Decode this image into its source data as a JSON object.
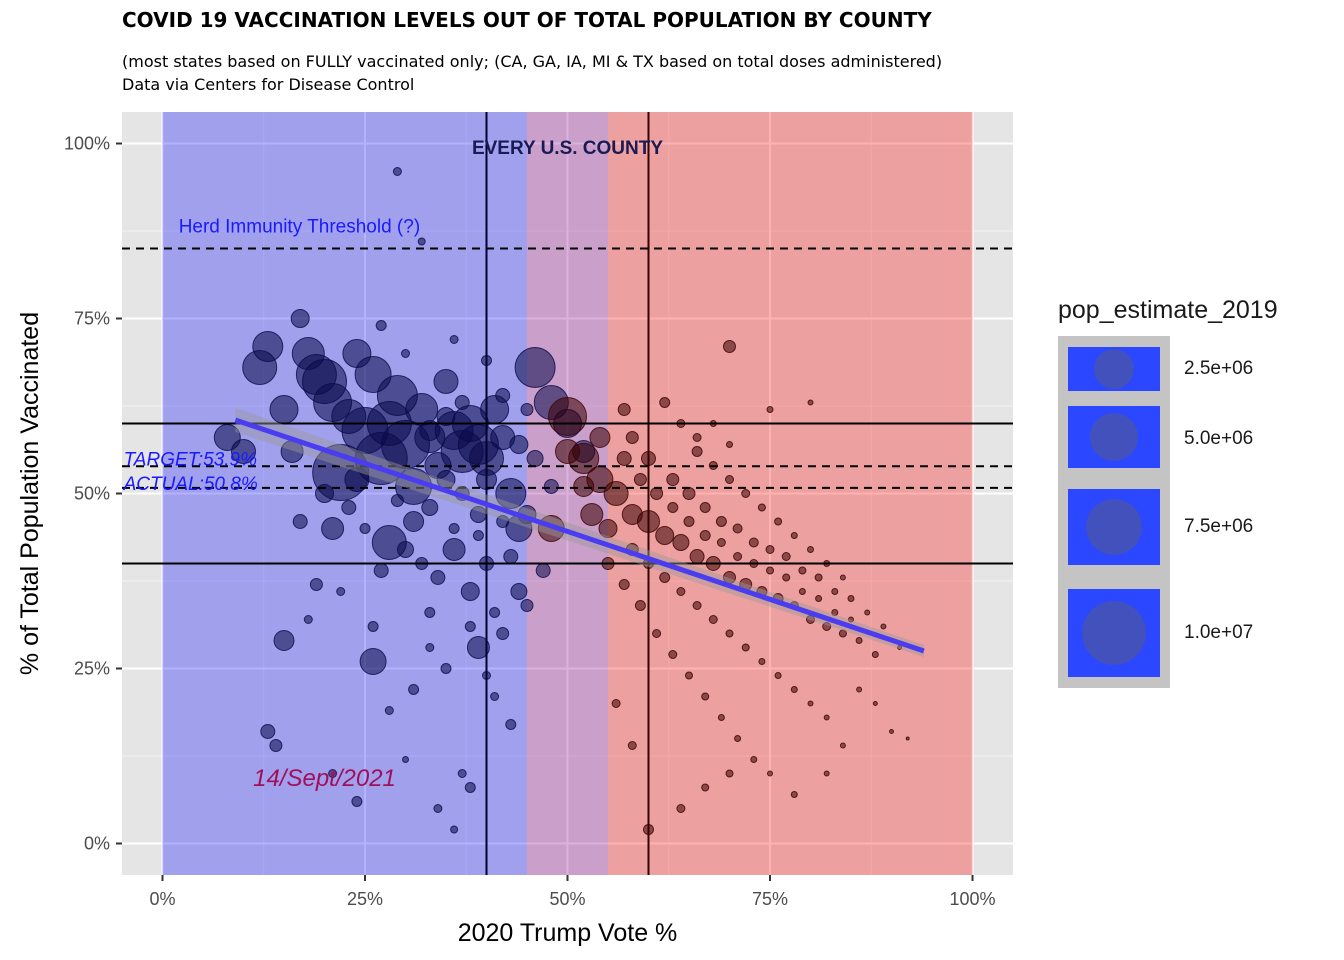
{
  "title": "COVID 19 VACCINATION LEVELS OUT OF TOTAL POPULATION BY COUNTY",
  "subtitle_line1": "(most states based on FULLY vaccinated only; (CA, GA, IA, MI & TX based on total doses administered)",
  "subtitle_line2": "Data via Centers for Disease Control",
  "chart_data": {
    "type": "scatter",
    "xlabel": "2020 Trump Vote %",
    "ylabel": "% of Total Population Vaccinated",
    "xlim": [
      -0.05,
      1.05
    ],
    "ylim": [
      -0.045,
      1.045
    ],
    "x_ticks": [
      0,
      0.25,
      0.5,
      0.75,
      1.0
    ],
    "x_tick_labels": [
      "0%",
      "25%",
      "50%",
      "75%",
      "100%"
    ],
    "y_ticks": [
      0,
      0.25,
      0.5,
      0.75,
      1.0
    ],
    "y_tick_labels": [
      "0%",
      "25%",
      "50%",
      "75%",
      "100%"
    ],
    "grid": true,
    "background_color": "#e5e5e5",
    "regions": [
      {
        "x_from": 0,
        "x_to": 0.45,
        "color": "#0000ff"
      },
      {
        "x_from": 0.45,
        "x_to": 0.55,
        "color": "#8b008b"
      },
      {
        "x_from": 0.55,
        "x_to": 1.0,
        "color": "#ff0000"
      }
    ],
    "vertical_lines": [
      0.4,
      0.6
    ],
    "horizontal_lines_solid": [
      0.6,
      0.4
    ],
    "horizontal_lines_dashed": [
      0.85,
      0.539,
      0.508
    ],
    "trend_line": {
      "x": [
        0.09,
        0.94
      ],
      "y": [
        0.605,
        0.275
      ],
      "color": "#4a3cf0"
    },
    "annotations": {
      "every_county": "EVERY U.S. COUNTY",
      "herd_immunity": "Herd Immunity Threshold (?)",
      "target": "TARGET:53.9%",
      "actual": "ACTUAL:50.8%",
      "date": "14/Sept/2021"
    },
    "series": [
      {
        "group": "blue",
        "color": "#0a0a4a",
        "points": [
          [
            0.08,
            0.58,
            26
          ],
          [
            0.1,
            0.56,
            24
          ],
          [
            0.12,
            0.68,
            34
          ],
          [
            0.13,
            0.71,
            30
          ],
          [
            0.15,
            0.62,
            28
          ],
          [
            0.16,
            0.56,
            22
          ],
          [
            0.17,
            0.75,
            18
          ],
          [
            0.18,
            0.7,
            32
          ],
          [
            0.19,
            0.67,
            40
          ],
          [
            0.2,
            0.66,
            44
          ],
          [
            0.21,
            0.63,
            38
          ],
          [
            0.22,
            0.53,
            56
          ],
          [
            0.23,
            0.61,
            34
          ],
          [
            0.24,
            0.7,
            28
          ],
          [
            0.25,
            0.59,
            46
          ],
          [
            0.26,
            0.67,
            36
          ],
          [
            0.27,
            0.55,
            52
          ],
          [
            0.28,
            0.6,
            44
          ],
          [
            0.29,
            0.64,
            40
          ],
          [
            0.3,
            0.57,
            48
          ],
          [
            0.31,
            0.51,
            36
          ],
          [
            0.32,
            0.62,
            32
          ],
          [
            0.33,
            0.58,
            30
          ],
          [
            0.34,
            0.54,
            26
          ],
          [
            0.35,
            0.66,
            24
          ],
          [
            0.36,
            0.59,
            38
          ],
          [
            0.37,
            0.56,
            42
          ],
          [
            0.38,
            0.6,
            36
          ],
          [
            0.39,
            0.57,
            40
          ],
          [
            0.4,
            0.55,
            34
          ],
          [
            0.41,
            0.62,
            28
          ],
          [
            0.42,
            0.58,
            24
          ],
          [
            0.43,
            0.5,
            30
          ],
          [
            0.44,
            0.45,
            26
          ],
          [
            0.46,
            0.68,
            40
          ],
          [
            0.48,
            0.63,
            34
          ],
          [
            0.5,
            0.6,
            28
          ],
          [
            0.52,
            0.56,
            22
          ],
          [
            0.17,
            0.46,
            14
          ],
          [
            0.19,
            0.37,
            12
          ],
          [
            0.2,
            0.5,
            18
          ],
          [
            0.21,
            0.45,
            22
          ],
          [
            0.24,
            0.52,
            24
          ],
          [
            0.26,
            0.26,
            26
          ],
          [
            0.27,
            0.39,
            14
          ],
          [
            0.28,
            0.43,
            34
          ],
          [
            0.3,
            0.42,
            16
          ],
          [
            0.31,
            0.46,
            20
          ],
          [
            0.32,
            0.4,
            12
          ],
          [
            0.33,
            0.33,
            10
          ],
          [
            0.34,
            0.38,
            14
          ],
          [
            0.36,
            0.42,
            22
          ],
          [
            0.38,
            0.36,
            18
          ],
          [
            0.39,
            0.28,
            22
          ],
          [
            0.4,
            0.4,
            14
          ],
          [
            0.41,
            0.33,
            10
          ],
          [
            0.42,
            0.3,
            12
          ],
          [
            0.44,
            0.36,
            16
          ],
          [
            0.15,
            0.29,
            20
          ],
          [
            0.13,
            0.16,
            14
          ],
          [
            0.14,
            0.14,
            12
          ],
          [
            0.21,
            0.1,
            8
          ],
          [
            0.24,
            0.06,
            10
          ],
          [
            0.29,
            0.96,
            8
          ],
          [
            0.32,
            0.86,
            7
          ],
          [
            0.3,
            0.7,
            8
          ],
          [
            0.36,
            0.45,
            10
          ],
          [
            0.37,
            0.5,
            14
          ],
          [
            0.39,
            0.47,
            16
          ],
          [
            0.43,
            0.41,
            14
          ],
          [
            0.45,
            0.47,
            18
          ],
          [
            0.35,
            0.25,
            10
          ],
          [
            0.37,
            0.1,
            8
          ],
          [
            0.3,
            0.12,
            6
          ],
          [
            0.34,
            0.05,
            8
          ],
          [
            0.38,
            0.08,
            10
          ],
          [
            0.36,
            0.02,
            7
          ],
          [
            0.41,
            0.21,
            8
          ],
          [
            0.43,
            0.17,
            10
          ],
          [
            0.45,
            0.34,
            12
          ],
          [
            0.47,
            0.39,
            14
          ],
          [
            0.33,
            0.59,
            20
          ],
          [
            0.35,
            0.61,
            18
          ],
          [
            0.37,
            0.63,
            14
          ],
          [
            0.4,
            0.52,
            20
          ],
          [
            0.44,
            0.57,
            18
          ],
          [
            0.46,
            0.55,
            16
          ],
          [
            0.48,
            0.51,
            14
          ],
          [
            0.27,
            0.74,
            10
          ],
          [
            0.36,
            0.72,
            8
          ],
          [
            0.4,
            0.69,
            10
          ],
          [
            0.42,
            0.64,
            14
          ],
          [
            0.45,
            0.62,
            12
          ],
          [
            0.25,
            0.45,
            10
          ],
          [
            0.23,
            0.48,
            14
          ],
          [
            0.29,
            0.49,
            12
          ],
          [
            0.33,
            0.48,
            16
          ],
          [
            0.35,
            0.52,
            18
          ],
          [
            0.39,
            0.44,
            10
          ],
          [
            0.42,
            0.46,
            12
          ],
          [
            0.18,
            0.32,
            8
          ],
          [
            0.22,
            0.36,
            8
          ],
          [
            0.26,
            0.31,
            10
          ],
          [
            0.28,
            0.19,
            8
          ],
          [
            0.31,
            0.22,
            10
          ],
          [
            0.33,
            0.28,
            8
          ],
          [
            0.38,
            0.31,
            10
          ],
          [
            0.4,
            0.24,
            8
          ]
        ]
      },
      {
        "group": "red",
        "color": "#3a0000",
        "points": [
          [
            0.5,
            0.61,
            38
          ],
          [
            0.52,
            0.55,
            30
          ],
          [
            0.54,
            0.52,
            26
          ],
          [
            0.56,
            0.5,
            24
          ],
          [
            0.58,
            0.47,
            20
          ],
          [
            0.6,
            0.46,
            22
          ],
          [
            0.62,
            0.44,
            18
          ],
          [
            0.64,
            0.43,
            16
          ],
          [
            0.66,
            0.41,
            14
          ],
          [
            0.68,
            0.4,
            14
          ],
          [
            0.7,
            0.38,
            12
          ],
          [
            0.72,
            0.37,
            12
          ],
          [
            0.74,
            0.36,
            10
          ],
          [
            0.76,
            0.35,
            10
          ],
          [
            0.78,
            0.34,
            8
          ],
          [
            0.8,
            0.32,
            8
          ],
          [
            0.82,
            0.31,
            8
          ],
          [
            0.84,
            0.3,
            7
          ],
          [
            0.86,
            0.29,
            6
          ],
          [
            0.88,
            0.27,
            6
          ],
          [
            0.57,
            0.55,
            14
          ],
          [
            0.59,
            0.52,
            12
          ],
          [
            0.61,
            0.5,
            12
          ],
          [
            0.63,
            0.48,
            10
          ],
          [
            0.65,
            0.46,
            10
          ],
          [
            0.67,
            0.44,
            10
          ],
          [
            0.69,
            0.43,
            8
          ],
          [
            0.71,
            0.41,
            8
          ],
          [
            0.73,
            0.4,
            8
          ],
          [
            0.75,
            0.39,
            7
          ],
          [
            0.77,
            0.38,
            7
          ],
          [
            0.79,
            0.36,
            6
          ],
          [
            0.81,
            0.35,
            6
          ],
          [
            0.83,
            0.33,
            6
          ],
          [
            0.85,
            0.32,
            5
          ],
          [
            0.58,
            0.42,
            12
          ],
          [
            0.6,
            0.4,
            10
          ],
          [
            0.62,
            0.38,
            10
          ],
          [
            0.64,
            0.36,
            8
          ],
          [
            0.66,
            0.34,
            8
          ],
          [
            0.68,
            0.32,
            8
          ],
          [
            0.7,
            0.3,
            7
          ],
          [
            0.72,
            0.28,
            7
          ],
          [
            0.74,
            0.26,
            6
          ],
          [
            0.76,
            0.24,
            6
          ],
          [
            0.78,
            0.22,
            6
          ],
          [
            0.8,
            0.2,
            5
          ],
          [
            0.82,
            0.18,
            5
          ],
          [
            0.66,
            0.56,
            10
          ],
          [
            0.68,
            0.54,
            8
          ],
          [
            0.7,
            0.52,
            8
          ],
          [
            0.72,
            0.5,
            8
          ],
          [
            0.74,
            0.48,
            7
          ],
          [
            0.76,
            0.46,
            7
          ],
          [
            0.78,
            0.44,
            6
          ],
          [
            0.8,
            0.42,
            6
          ],
          [
            0.82,
            0.4,
            6
          ],
          [
            0.84,
            0.38,
            5
          ],
          [
            0.55,
            0.4,
            12
          ],
          [
            0.57,
            0.37,
            10
          ],
          [
            0.59,
            0.34,
            10
          ],
          [
            0.61,
            0.3,
            8
          ],
          [
            0.63,
            0.27,
            8
          ],
          [
            0.65,
            0.24,
            7
          ],
          [
            0.67,
            0.21,
            7
          ],
          [
            0.69,
            0.18,
            6
          ],
          [
            0.71,
            0.15,
            6
          ],
          [
            0.73,
            0.12,
            6
          ],
          [
            0.75,
            0.1,
            5
          ],
          [
            0.62,
            0.63,
            10
          ],
          [
            0.64,
            0.6,
            8
          ],
          [
            0.66,
            0.58,
            8
          ],
          [
            0.68,
            0.6,
            6
          ],
          [
            0.7,
            0.57,
            6
          ],
          [
            0.7,
            0.71,
            12
          ],
          [
            0.75,
            0.62,
            6
          ],
          [
            0.8,
            0.63,
            5
          ],
          [
            0.6,
            0.02,
            10
          ],
          [
            0.64,
            0.05,
            8
          ],
          [
            0.67,
            0.08,
            7
          ],
          [
            0.7,
            0.1,
            7
          ],
          [
            0.58,
            0.14,
            8
          ],
          [
            0.56,
            0.2,
            8
          ],
          [
            0.53,
            0.47,
            22
          ],
          [
            0.55,
            0.45,
            18
          ],
          [
            0.52,
            0.51,
            20
          ],
          [
            0.48,
            0.45,
            26
          ],
          [
            0.5,
            0.56,
            24
          ],
          [
            0.54,
            0.58,
            20
          ],
          [
            0.57,
            0.62,
            12
          ],
          [
            0.6,
            0.55,
            14
          ],
          [
            0.58,
            0.58,
            12
          ],
          [
            0.63,
            0.52,
            12
          ],
          [
            0.65,
            0.5,
            12
          ],
          [
            0.67,
            0.48,
            10
          ],
          [
            0.69,
            0.46,
            10
          ],
          [
            0.71,
            0.45,
            9
          ],
          [
            0.73,
            0.43,
            9
          ],
          [
            0.75,
            0.42,
            8
          ],
          [
            0.77,
            0.41,
            8
          ],
          [
            0.79,
            0.39,
            7
          ],
          [
            0.81,
            0.38,
            7
          ],
          [
            0.83,
            0.36,
            6
          ],
          [
            0.85,
            0.35,
            6
          ],
          [
            0.87,
            0.33,
            5
          ],
          [
            0.89,
            0.31,
            5
          ],
          [
            0.91,
            0.28,
            4
          ],
          [
            0.86,
            0.22,
            5
          ],
          [
            0.88,
            0.2,
            4
          ],
          [
            0.84,
            0.14,
            5
          ],
          [
            0.82,
            0.1,
            5
          ],
          [
            0.78,
            0.07,
            6
          ],
          [
            0.9,
            0.16,
            4
          ],
          [
            0.92,
            0.15,
            3
          ]
        ]
      }
    ]
  },
  "legend": {
    "title": "pop_estimate_2019",
    "entries": [
      "2.5e+06",
      "5.0e+06",
      "7.5e+06",
      "1.0e+07"
    ],
    "key_color": "#2b47ff"
  }
}
